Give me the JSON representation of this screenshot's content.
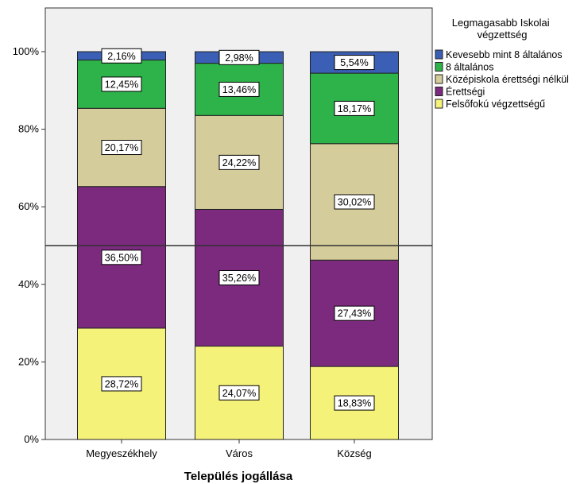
{
  "chart_data": {
    "type": "bar",
    "stacked": true,
    "percent_stacked": true,
    "title": "",
    "xlabel": "Település jogállása",
    "ylabel": "",
    "ylim": [
      0,
      100
    ],
    "yticks": [
      "0%",
      "20%",
      "40%",
      "60%",
      "80%",
      "100%"
    ],
    "categories": [
      "Megyeszékhely",
      "Város",
      "Község"
    ],
    "series": [
      {
        "name": "Felsőfokú végzettségű",
        "color": "#f5f27a",
        "values": [
          28.72,
          24.07,
          18.83
        ],
        "labels": [
          "28,72%",
          "24,07%",
          "18,83%"
        ]
      },
      {
        "name": "Érettségi",
        "color": "#7b2a7e",
        "values": [
          36.5,
          35.26,
          27.43
        ],
        "labels": [
          "36,50%",
          "35,26%",
          "27,43%"
        ]
      },
      {
        "name": "Középiskola érettségi nélkül",
        "color": "#d4cc9a",
        "values": [
          20.17,
          24.22,
          30.02
        ],
        "labels": [
          "20,17%",
          "24,22%",
          "30,02%"
        ]
      },
      {
        "name": "8 általános",
        "color": "#2db34a",
        "values": [
          12.45,
          13.46,
          18.17
        ],
        "labels": [
          "12,45%",
          "13,46%",
          "18,17%"
        ]
      },
      {
        "name": "Kevesebb mint 8 általános",
        "color": "#3a5fb5",
        "values": [
          2.16,
          2.98,
          5.54
        ],
        "labels": [
          "2,16%",
          "2,98%",
          "5,54%"
        ]
      }
    ],
    "reference_line": 50,
    "legend": {
      "title": "Legmagasabb Iskolai végzettség",
      "placement": "right",
      "order": [
        "Kevesebb mint 8 általános",
        "8 általános",
        "Középiskola érettségi nélkül",
        "Érettségi",
        "Felsőfokú végzettségű"
      ]
    },
    "plot_background": "#f0f0f0",
    "grid": false
  }
}
